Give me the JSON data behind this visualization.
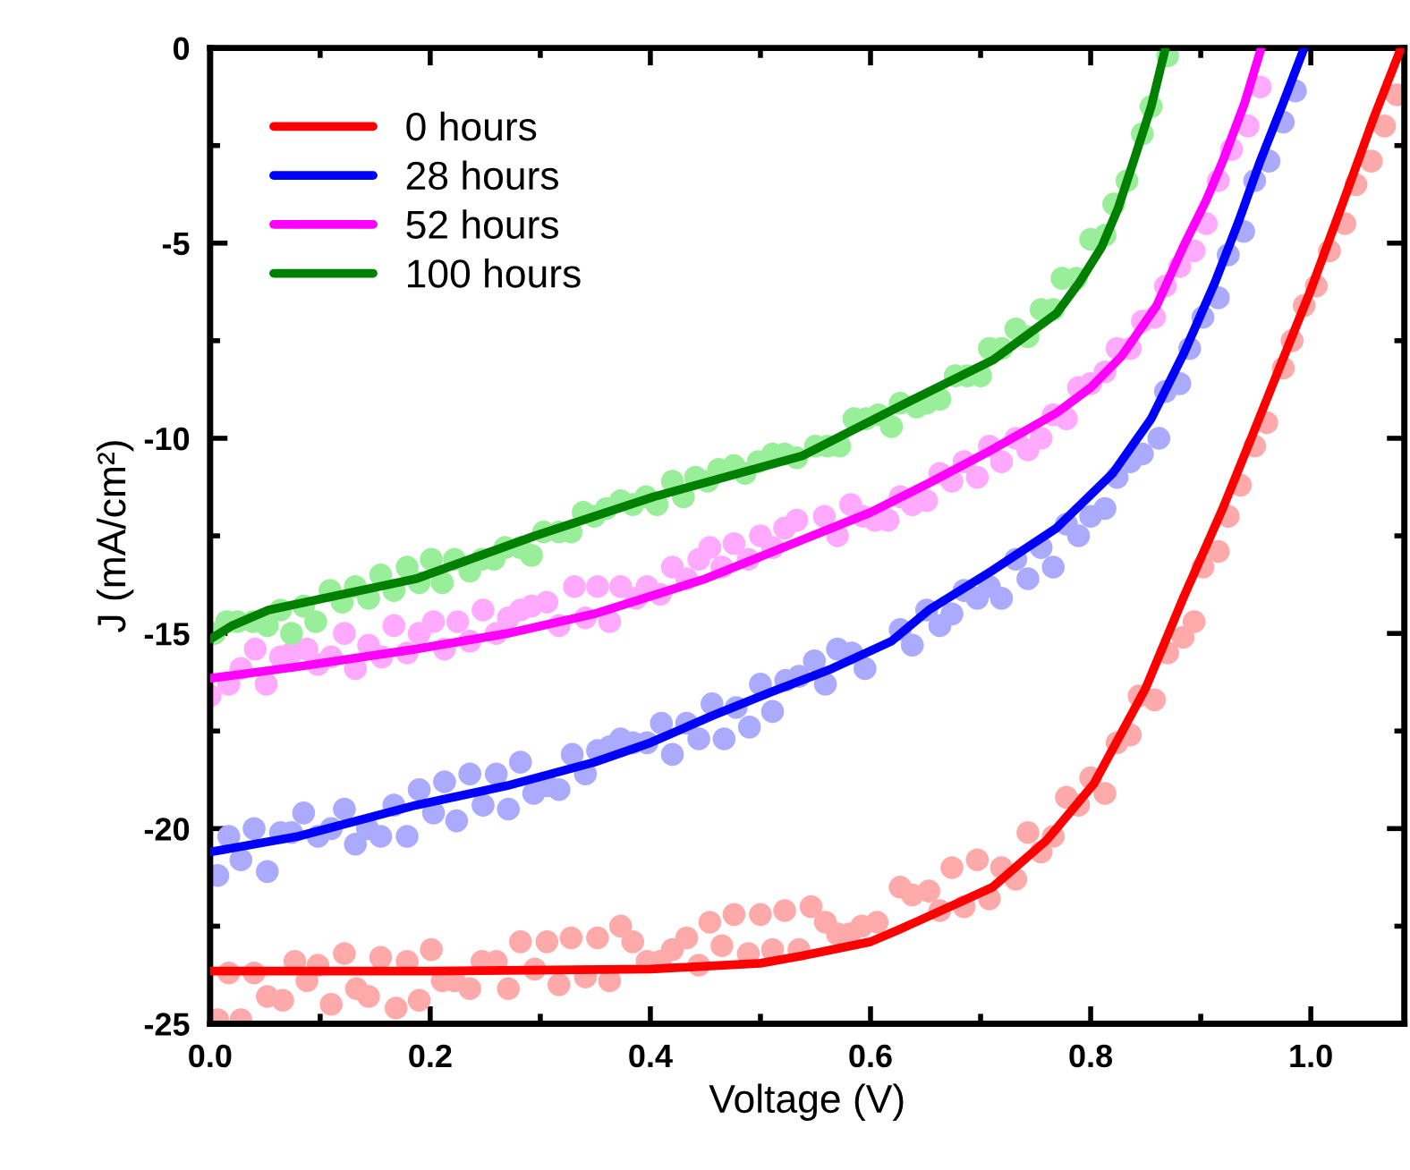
{
  "chart_data": {
    "type": "line",
    "xlabel": "Voltage (V)",
    "ylabel": "J (mA/cm²)",
    "xlim": [
      0,
      1.085
    ],
    "ylim": [
      -25,
      0
    ],
    "xticks": [
      {
        "value": 0,
        "label": "0.0"
      },
      {
        "value": 0.2,
        "label": "0.2"
      },
      {
        "value": 0.4,
        "label": "0.4"
      },
      {
        "value": 0.6,
        "label": "0.6"
      },
      {
        "value": 0.8,
        "label": "0.8"
      },
      {
        "value": 1.0,
        "label": "1.0"
      }
    ],
    "yticks": [
      -25,
      -20,
      -15,
      -10,
      -5,
      0
    ],
    "grid": false,
    "legend": "top left",
    "series": [
      {
        "type": "scatter",
        "marker": "circle",
        "color": "#ffaaaa",
        "x": [
          0.007,
          0.028,
          0.017,
          0.04,
          0.052,
          0.066,
          0.077,
          0.088,
          0.098,
          0.11,
          0.122,
          0.133,
          0.144,
          0.155,
          0.169,
          0.179,
          0.19,
          0.201,
          0.211,
          0.222,
          0.236,
          0.247,
          0.26,
          0.271,
          0.282,
          0.295,
          0.306,
          0.317,
          0.328,
          0.341,
          0.352,
          0.363,
          0.373,
          0.384,
          0.397,
          0.409,
          0.42,
          0.433,
          0.444,
          0.454,
          0.465,
          0.476,
          0.489,
          0.5,
          0.511,
          0.522,
          0.535,
          0.546,
          0.559,
          0.57,
          0.581,
          0.592,
          0.606,
          0.627,
          0.638,
          0.653,
          0.663,
          0.674,
          0.685,
          0.697,
          0.708,
          0.719,
          0.732,
          0.743,
          0.755,
          0.766,
          0.778,
          0.789,
          0.8,
          0.813,
          0.824,
          0.836,
          0.844,
          0.858,
          0.87,
          0.884,
          0.894,
          0.902,
          0.916,
          0.925,
          0.936,
          0.949,
          0.96,
          0.975,
          0.983,
          0.994,
          1.005,
          1.017,
          1.031,
          1.041,
          1.055,
          1.067,
          1.078
        ],
        "values": [
          -24.9,
          -24.9,
          -23.7,
          -23.7,
          -24.3,
          -24.4,
          -23.4,
          -23.9,
          -23.5,
          -24.5,
          -23.2,
          -24.1,
          -24.3,
          -23.3,
          -24.6,
          -23.4,
          -24.4,
          -23.1,
          -23.9,
          -23.9,
          -24.1,
          -23.4,
          -23.4,
          -24.1,
          -22.9,
          -23.6,
          -22.9,
          -24.0,
          -22.8,
          -23.8,
          -22.8,
          -23.9,
          -22.5,
          -22.9,
          -23.4,
          -23.4,
          -23.1,
          -22.8,
          -23.5,
          -22.4,
          -23.0,
          -22.2,
          -23.2,
          -22.2,
          -23.1,
          -22.1,
          -23.1,
          -22.0,
          -22.4,
          -22.7,
          -22.7,
          -22.5,
          -22.4,
          -21.5,
          -21.7,
          -21.6,
          -22.1,
          -21.0,
          -22.0,
          -20.8,
          -21.8,
          -21.0,
          -21.3,
          -20.1,
          -20.6,
          -20.2,
          -19.2,
          -19.4,
          -18.7,
          -19.1,
          -17.8,
          -17.6,
          -16.6,
          -16.7,
          -15.5,
          -15.1,
          -14.7,
          -13.3,
          -12.9,
          -12.0,
          -11.2,
          -10.2,
          -9.6,
          -8.2,
          -7.5,
          -6.6,
          -6.1,
          -5.2,
          -4.5,
          -3.5,
          -2.9,
          -2.0,
          -1.2
        ]
      },
      {
        "type": "scatter",
        "marker": "circle",
        "color": "#aaaaff",
        "x": [
          0.007,
          0.017,
          0.028,
          0.04,
          0.052,
          0.064,
          0.074,
          0.085,
          0.098,
          0.11,
          0.122,
          0.132,
          0.143,
          0.155,
          0.167,
          0.179,
          0.19,
          0.203,
          0.213,
          0.224,
          0.236,
          0.248,
          0.26,
          0.271,
          0.282,
          0.294,
          0.306,
          0.317,
          0.329,
          0.341,
          0.352,
          0.363,
          0.373,
          0.384,
          0.397,
          0.41,
          0.42,
          0.433,
          0.444,
          0.456,
          0.467,
          0.478,
          0.49,
          0.5,
          0.511,
          0.523,
          0.535,
          0.549,
          0.559,
          0.57,
          0.583,
          0.595,
          0.627,
          0.638,
          0.651,
          0.663,
          0.674,
          0.685,
          0.697,
          0.708,
          0.719,
          0.732,
          0.743,
          0.755,
          0.766,
          0.778,
          0.789,
          0.8,
          0.813,
          0.824,
          0.836,
          0.847,
          0.862,
          0.868,
          0.881,
          0.89,
          0.902,
          0.916,
          0.925,
          0.939,
          0.949,
          0.962,
          0.975,
          0.986
        ],
        "values": [
          -21.2,
          -20.2,
          -20.8,
          -20.0,
          -21.1,
          -20.1,
          -20.1,
          -19.6,
          -20.2,
          -20.0,
          -19.5,
          -20.4,
          -20.0,
          -20.2,
          -19.4,
          -20.2,
          -19.0,
          -19.6,
          -18.8,
          -19.8,
          -18.6,
          -19.4,
          -18.6,
          -19.5,
          -18.3,
          -19.1,
          -18.9,
          -19.0,
          -18.1,
          -18.6,
          -18.0,
          -17.9,
          -17.7,
          -17.8,
          -17.8,
          -17.3,
          -18.1,
          -17.3,
          -17.7,
          -16.8,
          -17.7,
          -16.9,
          -17.4,
          -16.3,
          -17.0,
          -16.2,
          -16.1,
          -15.7,
          -16.3,
          -15.4,
          -15.5,
          -15.9,
          -14.9,
          -15.3,
          -14.4,
          -14.8,
          -14.5,
          -13.9,
          -14.1,
          -13.8,
          -14.1,
          -13.1,
          -13.6,
          -12.8,
          -13.3,
          -12.2,
          -12.5,
          -12.0,
          -11.8,
          -11.0,
          -10.6,
          -10.4,
          -10.0,
          -8.8,
          -8.6,
          -7.7,
          -6.9,
          -6.4,
          -5.3,
          -4.7,
          -3.4,
          -2.9,
          -1.9,
          -1.1
        ]
      },
      {
        "type": "scatter",
        "marker": "circle",
        "color": "#ffaaff",
        "x": [
          0.0,
          0.017,
          0.028,
          0.041,
          0.051,
          0.064,
          0.074,
          0.088,
          0.098,
          0.11,
          0.122,
          0.132,
          0.144,
          0.156,
          0.167,
          0.179,
          0.19,
          0.203,
          0.213,
          0.225,
          0.236,
          0.248,
          0.26,
          0.271,
          0.282,
          0.292,
          0.306,
          0.317,
          0.331,
          0.341,
          0.352,
          0.363,
          0.373,
          0.387,
          0.397,
          0.409,
          0.42,
          0.433,
          0.444,
          0.454,
          0.465,
          0.476,
          0.489,
          0.5,
          0.511,
          0.522,
          0.533,
          0.558,
          0.57,
          0.582,
          0.593,
          0.604,
          0.616,
          0.627,
          0.638,
          0.651,
          0.663,
          0.674,
          0.685,
          0.697,
          0.708,
          0.719,
          0.732,
          0.743,
          0.755,
          0.766,
          0.778,
          0.789,
          0.8,
          0.813,
          0.824,
          0.836,
          0.847,
          0.858,
          0.868,
          0.881,
          0.894,
          0.905,
          0.916,
          0.928,
          0.943,
          0.954
        ],
        "values": [
          -16.6,
          -16.3,
          -15.9,
          -15.4,
          -16.3,
          -15.6,
          -15.5,
          -15.4,
          -15.8,
          -15.6,
          -15.0,
          -15.9,
          -15.3,
          -15.6,
          -14.8,
          -15.5,
          -15.0,
          -14.7,
          -15.4,
          -14.7,
          -15.2,
          -14.4,
          -15.0,
          -14.6,
          -14.4,
          -14.3,
          -14.2,
          -14.8,
          -13.8,
          -14.6,
          -13.8,
          -14.7,
          -13.8,
          -14.1,
          -13.8,
          -14.0,
          -13.3,
          -13.6,
          -13.1,
          -12.8,
          -13.3,
          -12.7,
          -13.1,
          -12.5,
          -12.8,
          -12.3,
          -12.1,
          -12.0,
          -12.5,
          -11.7,
          -12.0,
          -12.1,
          -12.1,
          -11.5,
          -11.7,
          -11.6,
          -10.9,
          -11.1,
          -10.6,
          -11.0,
          -10.2,
          -10.6,
          -10.0,
          -10.3,
          -10.0,
          -9.4,
          -9.5,
          -8.7,
          -8.6,
          -8.3,
          -7.7,
          -7.7,
          -7.0,
          -6.9,
          -6.1,
          -5.6,
          -5.2,
          -4.5,
          -3.4,
          -2.6,
          -2.0,
          -1.0
        ]
      },
      {
        "type": "scatter",
        "marker": "circle",
        "color": "#99ee99",
        "x": [
          0.004,
          0.015,
          0.025,
          0.039,
          0.052,
          0.064,
          0.074,
          0.085,
          0.096,
          0.109,
          0.12,
          0.132,
          0.144,
          0.155,
          0.167,
          0.179,
          0.19,
          0.201,
          0.211,
          0.222,
          0.236,
          0.247,
          0.258,
          0.268,
          0.282,
          0.292,
          0.303,
          0.317,
          0.328,
          0.339,
          0.349,
          0.36,
          0.373,
          0.384,
          0.396,
          0.406,
          0.42,
          0.43,
          0.441,
          0.452,
          0.462,
          0.476,
          0.486,
          0.498,
          0.511,
          0.522,
          0.533,
          0.55,
          0.561,
          0.572,
          0.585,
          0.596,
          0.607,
          0.619,
          0.627,
          0.642,
          0.651,
          0.663,
          0.677,
          0.688,
          0.7,
          0.708,
          0.719,
          0.732,
          0.743,
          0.755,
          0.766,
          0.774,
          0.787,
          0.8,
          0.813,
          0.821,
          0.833,
          0.847,
          0.855,
          0.87
        ],
        "values": [
          -15.0,
          -14.7,
          -14.7,
          -14.7,
          -14.8,
          -14.4,
          -15.0,
          -14.3,
          -14.7,
          -13.9,
          -14.2,
          -13.8,
          -14.1,
          -13.5,
          -13.9,
          -13.3,
          -13.7,
          -13.1,
          -13.7,
          -13.1,
          -13.4,
          -13.1,
          -13.1,
          -12.8,
          -12.8,
          -13.0,
          -12.4,
          -12.4,
          -12.4,
          -11.9,
          -12.0,
          -11.8,
          -11.6,
          -11.7,
          -11.5,
          -11.7,
          -11.1,
          -11.5,
          -11.0,
          -11.1,
          -10.8,
          -10.7,
          -10.9,
          -10.6,
          -10.4,
          -10.4,
          -10.5,
          -10.2,
          -10.2,
          -10.2,
          -9.5,
          -9.5,
          -9.4,
          -9.7,
          -9.1,
          -9.2,
          -9.1,
          -9.0,
          -8.4,
          -8.4,
          -8.4,
          -7.7,
          -7.7,
          -7.2,
          -7.4,
          -6.7,
          -6.7,
          -5.9,
          -5.9,
          -4.9,
          -4.8,
          -4.0,
          -3.4,
          -2.2,
          -1.5,
          -0.2
        ]
      },
      {
        "name": "0 hours",
        "marker": "none",
        "color": "#ff0000",
        "x": [
          0,
          0.2,
          0.4,
          0.5,
          0.538,
          0.6,
          0.625,
          0.68,
          0.711,
          0.76,
          0.803,
          0.85,
          0.884,
          0.92,
          0.943,
          0.97,
          1.0,
          1.03,
          1.057,
          1.082
        ],
        "values": [
          -23.65,
          -23.65,
          -23.6,
          -23.45,
          -23.26,
          -22.9,
          -22.6,
          -21.9,
          -21.5,
          -20.3,
          -18.85,
          -16.4,
          -14.1,
          -11.8,
          -10.2,
          -8.3,
          -6.2,
          -3.9,
          -1.8,
          0
        ]
      },
      {
        "name": "28 hours",
        "marker": "none",
        "color": "#0000ff",
        "x": [
          0,
          0.08,
          0.187,
          0.27,
          0.349,
          0.4,
          0.457,
          0.51,
          0.565,
          0.619,
          0.653,
          0.71,
          0.769,
          0.82,
          0.855,
          0.885,
          0.913,
          0.935,
          0.954,
          0.975,
          0.994
        ],
        "values": [
          -20.6,
          -20.2,
          -19.4,
          -18.9,
          -18.3,
          -17.8,
          -17.1,
          -16.5,
          -15.9,
          -15.2,
          -14.4,
          -13.4,
          -12.3,
          -10.9,
          -9.5,
          -7.8,
          -6.0,
          -4.4,
          -2.9,
          -1.4,
          0
        ]
      },
      {
        "name": "52 hours",
        "marker": "none",
        "color": "#ff00ff",
        "x": [
          0,
          0.08,
          0.187,
          0.27,
          0.349,
          0.45,
          0.538,
          0.6,
          0.653,
          0.71,
          0.769,
          0.8,
          0.828,
          0.86,
          0.884,
          0.905,
          0.92,
          0.94,
          0.955
        ],
        "values": [
          -16.15,
          -15.85,
          -15.4,
          -15.0,
          -14.5,
          -13.6,
          -12.6,
          -11.9,
          -11.15,
          -10.3,
          -9.35,
          -8.7,
          -7.9,
          -6.6,
          -5.1,
          -3.9,
          -2.9,
          -1.4,
          0
        ]
      },
      {
        "name": "100 hours",
        "marker": "none",
        "color": "#008000",
        "x": [
          0,
          0.02,
          0.053,
          0.12,
          0.187,
          0.295,
          0.403,
          0.538,
          0.625,
          0.711,
          0.769,
          0.79,
          0.81,
          0.825,
          0.839,
          0.855,
          0.868
        ],
        "values": [
          -15.15,
          -14.8,
          -14.4,
          -14.0,
          -13.6,
          -12.5,
          -11.5,
          -10.45,
          -9.2,
          -8.0,
          -6.8,
          -6.0,
          -5.1,
          -4.1,
          -2.9,
          -1.5,
          0
        ]
      }
    ]
  }
}
